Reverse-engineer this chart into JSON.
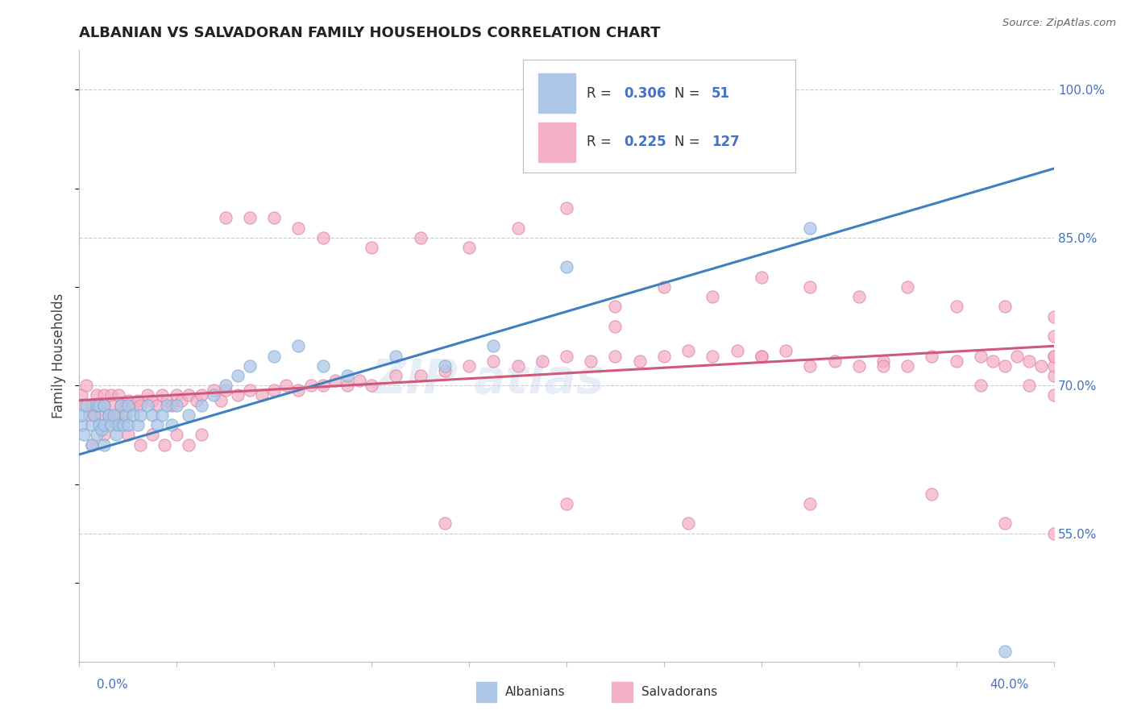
{
  "title": "ALBANIAN VS SALVADORAN FAMILY HOUSEHOLDS CORRELATION CHART",
  "source": "Source: ZipAtlas.com",
  "ylabel": "Family Households",
  "ytick_labels": [
    "55.0%",
    "70.0%",
    "85.0%",
    "100.0%"
  ],
  "ytick_values": [
    0.55,
    0.7,
    0.85,
    1.0
  ],
  "xlim": [
    0.0,
    0.4
  ],
  "ylim": [
    0.42,
    1.04
  ],
  "blue_scatter_color": "#aec6e8",
  "blue_scatter_edge": "#7aadd0",
  "pink_scatter_color": "#f4b0c8",
  "pink_scatter_edge": "#e080a0",
  "blue_line_color": "#4080c0",
  "pink_line_color": "#d05878",
  "alb_line_x0": 0.0,
  "alb_line_y0": 0.63,
  "alb_line_x1": 0.4,
  "alb_line_y1": 0.92,
  "sal_line_x0": 0.0,
  "sal_line_y0": 0.685,
  "sal_line_x1": 0.4,
  "sal_line_y1": 0.74,
  "watermark_text": "ZIP atlas",
  "legend_blue_label_R": "0.306",
  "legend_blue_label_N": "51",
  "legend_pink_label_R": "0.225",
  "legend_pink_label_N": "127",
  "albanians_x": [
    0.001,
    0.001,
    0.002,
    0.003,
    0.005,
    0.005,
    0.006,
    0.007,
    0.007,
    0.008,
    0.008,
    0.009,
    0.01,
    0.01,
    0.01,
    0.012,
    0.013,
    0.014,
    0.015,
    0.016,
    0.017,
    0.018,
    0.019,
    0.02,
    0.02,
    0.022,
    0.024,
    0.025,
    0.028,
    0.03,
    0.032,
    0.034,
    0.036,
    0.038,
    0.04,
    0.045,
    0.05,
    0.055,
    0.06,
    0.065,
    0.07,
    0.08,
    0.09,
    0.1,
    0.11,
    0.13,
    0.15,
    0.17,
    0.2,
    0.3,
    0.38
  ],
  "albanians_y": [
    0.66,
    0.67,
    0.65,
    0.68,
    0.64,
    0.66,
    0.67,
    0.65,
    0.68,
    0.66,
    0.68,
    0.655,
    0.64,
    0.66,
    0.68,
    0.67,
    0.66,
    0.67,
    0.65,
    0.66,
    0.68,
    0.66,
    0.67,
    0.66,
    0.68,
    0.67,
    0.66,
    0.67,
    0.68,
    0.67,
    0.66,
    0.67,
    0.68,
    0.66,
    0.68,
    0.67,
    0.68,
    0.69,
    0.7,
    0.71,
    0.72,
    0.73,
    0.74,
    0.72,
    0.71,
    0.73,
    0.72,
    0.74,
    0.82,
    0.86,
    0.43
  ],
  "salvadorans_x": [
    0.001,
    0.002,
    0.003,
    0.004,
    0.005,
    0.006,
    0.007,
    0.008,
    0.009,
    0.01,
    0.01,
    0.012,
    0.013,
    0.014,
    0.015,
    0.016,
    0.017,
    0.018,
    0.019,
    0.02,
    0.022,
    0.024,
    0.025,
    0.028,
    0.03,
    0.032,
    0.034,
    0.036,
    0.038,
    0.04,
    0.042,
    0.045,
    0.048,
    0.05,
    0.055,
    0.058,
    0.06,
    0.065,
    0.07,
    0.075,
    0.08,
    0.085,
    0.09,
    0.095,
    0.1,
    0.105,
    0.11,
    0.115,
    0.12,
    0.13,
    0.14,
    0.15,
    0.16,
    0.17,
    0.18,
    0.19,
    0.2,
    0.21,
    0.22,
    0.23,
    0.24,
    0.25,
    0.26,
    0.27,
    0.28,
    0.29,
    0.3,
    0.31,
    0.32,
    0.33,
    0.34,
    0.35,
    0.36,
    0.37,
    0.375,
    0.38,
    0.385,
    0.39,
    0.395,
    0.4,
    0.005,
    0.01,
    0.015,
    0.02,
    0.025,
    0.03,
    0.035,
    0.04,
    0.045,
    0.05,
    0.06,
    0.07,
    0.08,
    0.09,
    0.1,
    0.12,
    0.14,
    0.16,
    0.18,
    0.2,
    0.22,
    0.24,
    0.26,
    0.28,
    0.3,
    0.32,
    0.34,
    0.36,
    0.38,
    0.4,
    0.15,
    0.2,
    0.25,
    0.3,
    0.35,
    0.38,
    0.4,
    0.22,
    0.28,
    0.33,
    0.37,
    0.39,
    0.4,
    0.4,
    0.4,
    0.4,
    0.4
  ],
  "salvadorans_y": [
    0.69,
    0.68,
    0.7,
    0.67,
    0.68,
    0.67,
    0.69,
    0.68,
    0.67,
    0.69,
    0.68,
    0.67,
    0.69,
    0.68,
    0.67,
    0.69,
    0.68,
    0.67,
    0.68,
    0.685,
    0.68,
    0.685,
    0.68,
    0.69,
    0.685,
    0.68,
    0.69,
    0.685,
    0.68,
    0.69,
    0.685,
    0.69,
    0.685,
    0.69,
    0.695,
    0.685,
    0.695,
    0.69,
    0.695,
    0.69,
    0.695,
    0.7,
    0.695,
    0.7,
    0.7,
    0.705,
    0.7,
    0.705,
    0.7,
    0.71,
    0.71,
    0.715,
    0.72,
    0.725,
    0.72,
    0.725,
    0.73,
    0.725,
    0.73,
    0.725,
    0.73,
    0.735,
    0.73,
    0.735,
    0.73,
    0.735,
    0.72,
    0.725,
    0.72,
    0.725,
    0.72,
    0.73,
    0.725,
    0.73,
    0.725,
    0.72,
    0.73,
    0.725,
    0.72,
    0.73,
    0.64,
    0.65,
    0.66,
    0.65,
    0.64,
    0.65,
    0.64,
    0.65,
    0.64,
    0.65,
    0.87,
    0.87,
    0.87,
    0.86,
    0.85,
    0.84,
    0.85,
    0.84,
    0.86,
    0.88,
    0.78,
    0.8,
    0.79,
    0.81,
    0.8,
    0.79,
    0.8,
    0.78,
    0.78,
    0.77,
    0.56,
    0.58,
    0.56,
    0.58,
    0.59,
    0.56,
    0.55,
    0.76,
    0.73,
    0.72,
    0.7,
    0.7,
    0.69,
    0.71,
    0.72,
    0.73,
    0.75
  ]
}
